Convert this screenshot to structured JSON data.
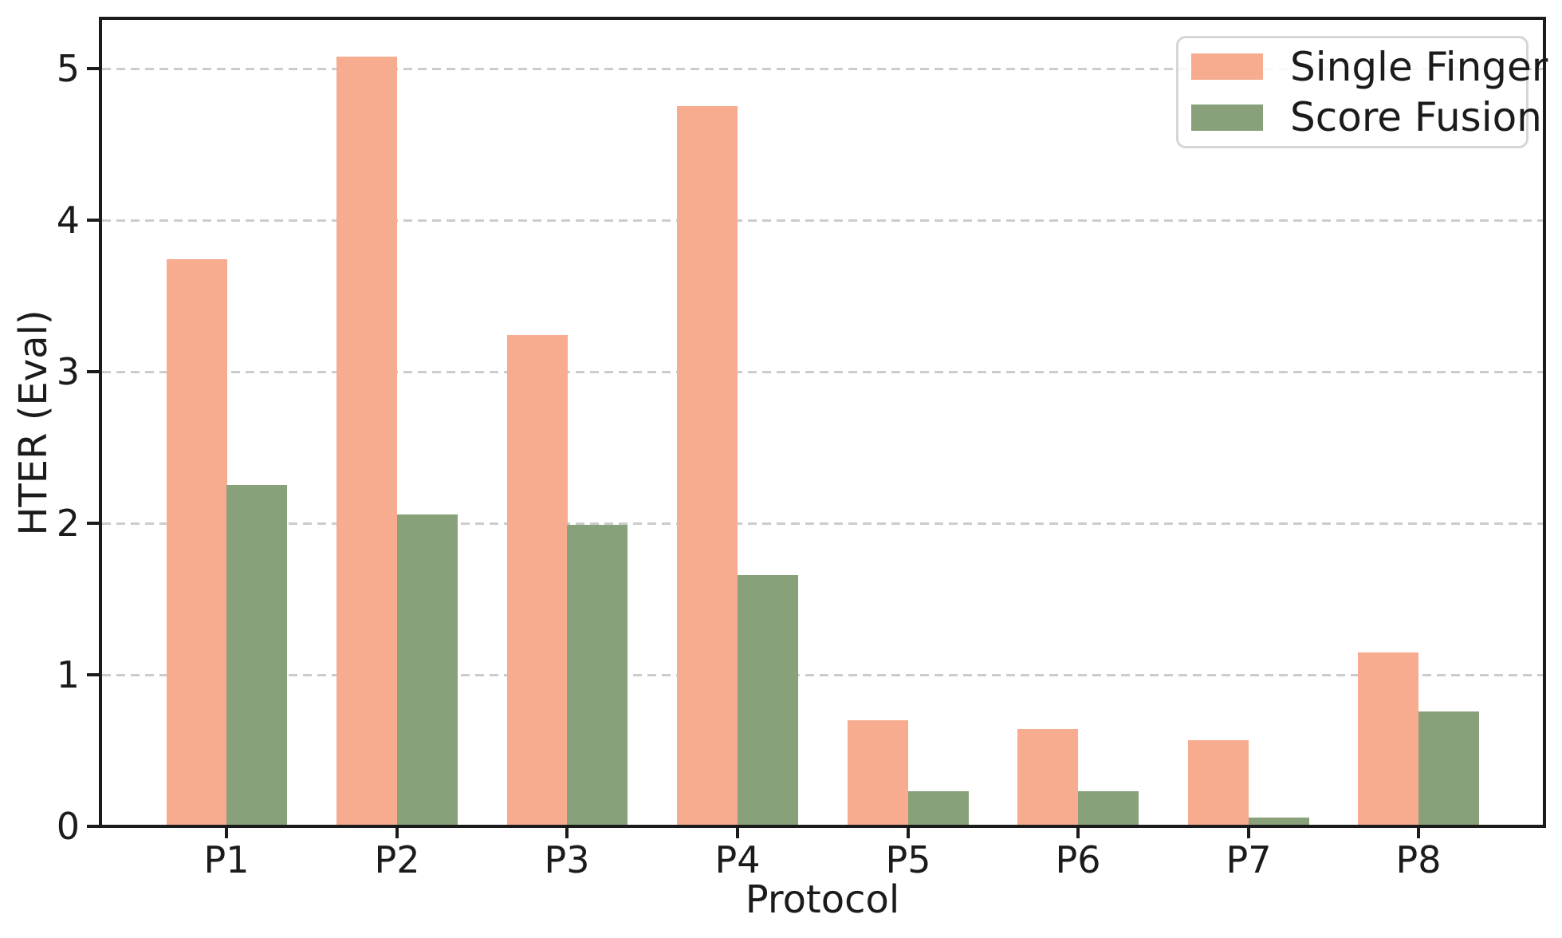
{
  "figure": {
    "background": "#ffffff"
  },
  "chart_data": {
    "type": "bar",
    "title": "",
    "xlabel": "Protocol",
    "ylabel": "HTER (Eval)",
    "categories": [
      "P1",
      "P2",
      "P3",
      "P4",
      "P5",
      "P6",
      "P7",
      "P8"
    ],
    "series": [
      {
        "name": "Single Finger",
        "color": "#f7ab8f",
        "values": [
          3.74,
          5.08,
          3.24,
          4.75,
          0.7,
          0.64,
          0.57,
          1.15
        ]
      },
      {
        "name": "Score Fusion",
        "color": "#88a17b",
        "values": [
          2.25,
          2.06,
          1.99,
          1.66,
          0.23,
          0.23,
          0.06,
          0.76
        ]
      }
    ],
    "ylim": [
      0,
      5.33
    ],
    "yticks": [
      0,
      1,
      2,
      3,
      4,
      5
    ],
    "grid": {
      "axis": "y",
      "style": "dashed",
      "color": "#cccccc"
    },
    "legend": {
      "position": "upper right",
      "entries": [
        "Single Finger",
        "Score Fusion"
      ]
    },
    "axis_color": "#1b1b1b",
    "bar_width_ratio": 0.35
  }
}
